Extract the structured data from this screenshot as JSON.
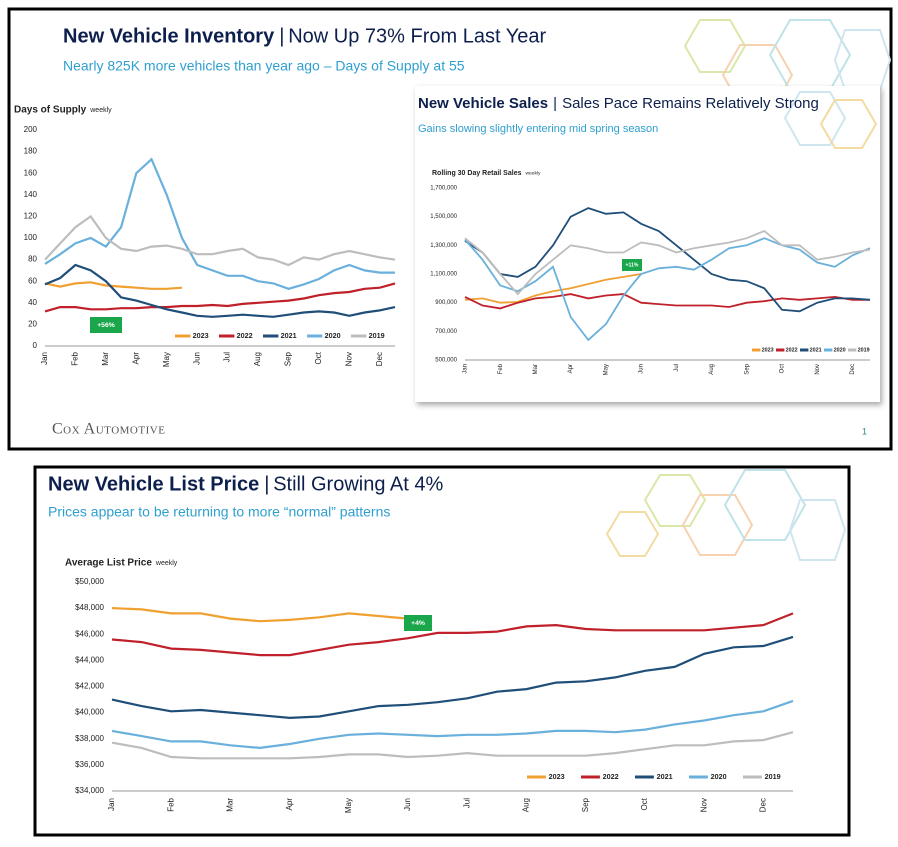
{
  "chart_data": [
    {
      "type": "line",
      "title": "New Vehicle Inventory",
      "headline": "Now Up 73% From Last Year",
      "subtitle": "Nearly 825K more vehicles than year ago – Days of Supply at 55",
      "y_label": "Days of Supply",
      "y_label_note": "weekly",
      "categories": [
        "Jan",
        null,
        "Feb",
        null,
        "Mar",
        null,
        "Apr",
        null,
        "May",
        null,
        "Jun",
        null,
        "Jul",
        null,
        "Aug",
        null,
        "Sep",
        null,
        "Oct",
        null,
        "Nov",
        null,
        "Dec",
        null
      ],
      "series": [
        {
          "name": "2023",
          "color": "#f0a030",
          "values": [
            58,
            55,
            58,
            59,
            56,
            55,
            54,
            53,
            53,
            54,
            null,
            null,
            null,
            null,
            null,
            null,
            null,
            null,
            null,
            null,
            null,
            null,
            null,
            null
          ]
        },
        {
          "name": "2022",
          "color": "#c0202a",
          "values": [
            32,
            36,
            36,
            34,
            34,
            35,
            35,
            36,
            36,
            37,
            37,
            38,
            37,
            39,
            40,
            41,
            42,
            44,
            47,
            49,
            50,
            53,
            54,
            58
          ]
        },
        {
          "name": "2021",
          "color": "#1f4e79",
          "values": [
            57,
            63,
            75,
            70,
            60,
            45,
            42,
            38,
            34,
            31,
            28,
            27,
            28,
            29,
            28,
            27,
            29,
            31,
            32,
            31,
            28,
            31,
            33,
            36
          ]
        },
        {
          "name": "2020",
          "color": "#6ab0dc",
          "values": [
            76,
            85,
            95,
            100,
            92,
            110,
            160,
            173,
            140,
            100,
            75,
            70,
            65,
            65,
            60,
            58,
            53,
            57,
            62,
            70,
            75,
            70,
            68,
            68
          ]
        },
        {
          "name": "2019",
          "color": "#bdbdbd",
          "values": [
            80,
            95,
            110,
            120,
            100,
            90,
            88,
            92,
            93,
            90,
            85,
            85,
            88,
            90,
            82,
            80,
            75,
            82,
            80,
            85,
            88,
            85,
            82,
            80
          ]
        }
      ],
      "ylim": [
        0,
        200
      ],
      "yticks": [
        0,
        20,
        40,
        60,
        80,
        100,
        120,
        140,
        160,
        180,
        200
      ],
      "annotation": "+56%"
    },
    {
      "type": "line",
      "title": "New Vehicle Sales",
      "headline": "Sales Pace Remains Relatively Strong",
      "subtitle": "Gains slowing slightly entering mid spring season",
      "y_label": "Rolling 30 Day Retail Sales",
      "y_label_note": "weekly",
      "categories": [
        "Jan",
        null,
        "Feb",
        null,
        "Mar",
        null,
        "Apr",
        null,
        "May",
        null,
        "Jun",
        null,
        "Jul",
        null,
        "Aug",
        null,
        "Sep",
        null,
        "Oct",
        null,
        "Nov",
        null,
        "Dec",
        null
      ],
      "series": [
        {
          "name": "2023",
          "color": "#f0a030",
          "values": [
            920000,
            930000,
            900000,
            905000,
            950000,
            980000,
            1000000,
            1030000,
            1060000,
            1080000,
            1100000,
            null,
            null,
            null,
            null,
            null,
            null,
            null,
            null,
            null,
            null,
            null,
            null,
            null
          ]
        },
        {
          "name": "2022",
          "color": "#c0202a",
          "values": [
            940000,
            880000,
            860000,
            900000,
            930000,
            940000,
            960000,
            930000,
            950000,
            960000,
            900000,
            890000,
            880000,
            880000,
            880000,
            870000,
            900000,
            910000,
            930000,
            920000,
            930000,
            940000,
            920000,
            920000
          ]
        },
        {
          "name": "2021",
          "color": "#1f4e79",
          "values": [
            1330000,
            1250000,
            1100000,
            1080000,
            1150000,
            1300000,
            1500000,
            1560000,
            1520000,
            1530000,
            1450000,
            1400000,
            1300000,
            1200000,
            1100000,
            1060000,
            1050000,
            1000000,
            850000,
            840000,
            900000,
            930000,
            930000,
            920000
          ]
        },
        {
          "name": "2020",
          "color": "#6ab0dc",
          "values": [
            1340000,
            1200000,
            1020000,
            980000,
            1050000,
            1150000,
            800000,
            640000,
            750000,
            950000,
            1100000,
            1140000,
            1150000,
            1130000,
            1200000,
            1280000,
            1300000,
            1350000,
            1300000,
            1270000,
            1180000,
            1150000,
            1230000,
            1280000
          ]
        },
        {
          "name": "2019",
          "color": "#bdbdbd",
          "values": [
            1350000,
            1250000,
            1100000,
            960000,
            1100000,
            1200000,
            1300000,
            1280000,
            1250000,
            1250000,
            1320000,
            1300000,
            1250000,
            1280000,
            1300000,
            1320000,
            1350000,
            1400000,
            1300000,
            1300000,
            1200000,
            1220000,
            1250000,
            1270000
          ]
        }
      ],
      "ylim": [
        500000,
        1700000
      ],
      "yticks": [
        {
          "value": 500000,
          "label": "500,000"
        },
        {
          "value": 700000,
          "label": "700,000"
        },
        {
          "value": 900000,
          "label": "900,000"
        },
        {
          "value": 1100000,
          "label": "1,100,000"
        },
        {
          "value": 1300000,
          "label": "1,300,000"
        },
        {
          "value": 1500000,
          "label": "1,500,000"
        },
        {
          "value": 1700000,
          "label": "1,700,000"
        }
      ],
      "annotation": "+11%"
    },
    {
      "type": "line",
      "title": "New Vehicle List Price",
      "headline": "Still Growing At 4%",
      "subtitle": "Prices appear to be returning to more “normal” patterns",
      "y_label": "Average List Price",
      "y_label_note": "weekly",
      "categories": [
        "Jan",
        null,
        "Feb",
        null,
        "Mar",
        null,
        "Apr",
        null,
        "May",
        null,
        "Jun",
        null,
        "Jul",
        null,
        "Aug",
        null,
        "Sep",
        null,
        "Oct",
        null,
        "Nov",
        null,
        "Dec",
        null
      ],
      "series": [
        {
          "name": "2023",
          "color": "#f0a030",
          "values": [
            48000,
            47900,
            47600,
            47600,
            47200,
            47000,
            47100,
            47300,
            47600,
            47400,
            47200,
            null,
            null,
            null,
            null,
            null,
            null,
            null,
            null,
            null,
            null,
            null,
            null,
            null
          ]
        },
        {
          "name": "2022",
          "color": "#c0202a",
          "values": [
            45600,
            45400,
            44900,
            44800,
            44600,
            44400,
            44400,
            44800,
            45200,
            45400,
            45700,
            46100,
            46100,
            46200,
            46600,
            46700,
            46400,
            46300,
            46300,
            46300,
            46300,
            46500,
            46700,
            47600
          ]
        },
        {
          "name": "2021",
          "color": "#1f4e79",
          "values": [
            41000,
            40500,
            40100,
            40200,
            40000,
            39800,
            39600,
            39700,
            40100,
            40500,
            40600,
            40800,
            41100,
            41600,
            41800,
            42300,
            42400,
            42700,
            43200,
            43500,
            44500,
            45000,
            45100,
            45800
          ]
        },
        {
          "name": "2020",
          "color": "#6ab0dc",
          "values": [
            38600,
            38200,
            37800,
            37800,
            37500,
            37300,
            37600,
            38000,
            38300,
            38400,
            38300,
            38200,
            38300,
            38300,
            38400,
            38600,
            38600,
            38500,
            38700,
            39100,
            39400,
            39800,
            40100,
            40900
          ]
        },
        {
          "name": "2019",
          "color": "#bdbdbd",
          "values": [
            37700,
            37300,
            36600,
            36500,
            36500,
            36500,
            36500,
            36600,
            36800,
            36800,
            36600,
            36700,
            36900,
            36700,
            36700,
            36700,
            36700,
            36900,
            37200,
            37500,
            37500,
            37800,
            37900,
            38500
          ]
        }
      ],
      "ylim": [
        34000,
        50000
      ],
      "yticks": [
        {
          "value": 34000,
          "label": "$34,000"
        },
        {
          "value": 36000,
          "label": "$36,000"
        },
        {
          "value": 38000,
          "label": "$38,000"
        },
        {
          "value": 40000,
          "label": "$40,000"
        },
        {
          "value": 42000,
          "label": "$42,000"
        },
        {
          "value": 44000,
          "label": "$44,000"
        },
        {
          "value": 46000,
          "label": "$46,000"
        },
        {
          "value": 48000,
          "label": "$48,000"
        },
        {
          "value": 50000,
          "label": "$50,000"
        }
      ],
      "annotation": "+4%"
    }
  ],
  "footer": {
    "brand": "Cox Automotive",
    "page": "1"
  }
}
